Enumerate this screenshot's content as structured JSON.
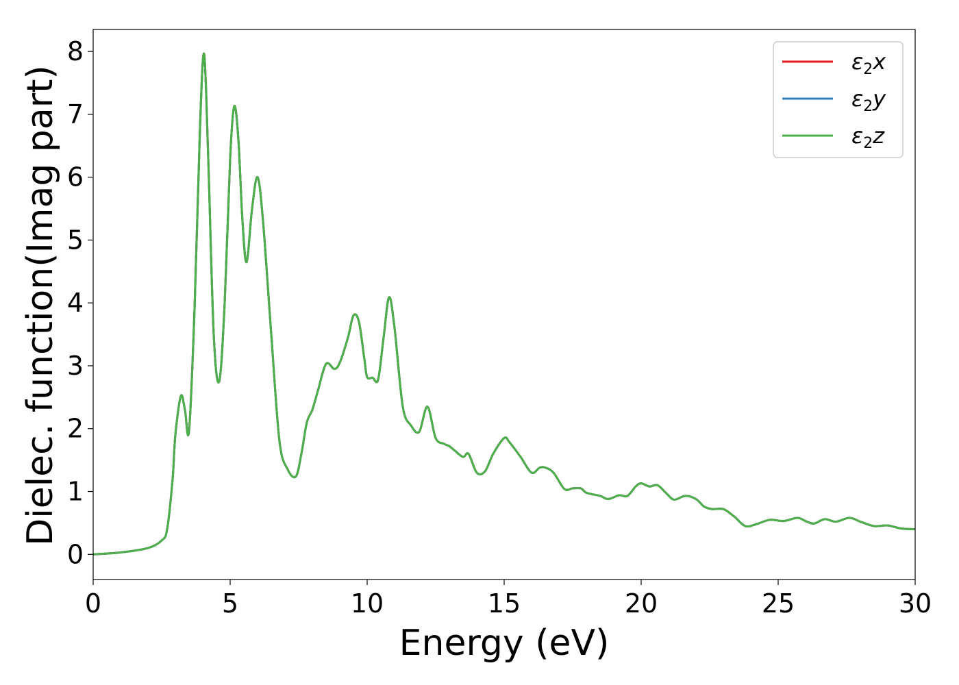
{
  "chart_data": {
    "type": "line",
    "xlabel": "Energy (eV)",
    "ylabel": "Dielec. function(Imag part)",
    "xlim": [
      0,
      30
    ],
    "ylim": [
      -0.4,
      8.35
    ],
    "xticks": [
      0,
      5,
      10,
      15,
      20,
      25,
      30
    ],
    "xtick_labels": [
      "0",
      "5",
      "10",
      "15",
      "20",
      "25",
      "30"
    ],
    "yticks": [
      0,
      1,
      2,
      3,
      4,
      5,
      6,
      7,
      8
    ],
    "ytick_labels": [
      "0",
      "1",
      "2",
      "3",
      "4",
      "5",
      "6",
      "7",
      "8"
    ],
    "grid": false,
    "legend_position": "top-right",
    "series": [
      {
        "name": "ε2x",
        "symbol": "ε",
        "subscript": "2",
        "axis": "x",
        "color": "#e41a1c"
      },
      {
        "name": "ε2y",
        "symbol": "ε",
        "subscript": "2",
        "axis": "y",
        "color": "#377eb8"
      },
      {
        "name": "ε2z",
        "symbol": "ε",
        "subscript": "2",
        "axis": "z",
        "color": "#4daf4a"
      }
    ],
    "x": [
      0,
      1,
      2,
      2.5,
      2.7,
      2.9,
      3.0,
      3.2,
      3.35,
      3.5,
      3.7,
      3.9,
      4.05,
      4.2,
      4.4,
      4.6,
      4.8,
      5.0,
      5.15,
      5.3,
      5.45,
      5.6,
      5.8,
      6.0,
      6.2,
      6.5,
      6.8,
      7.1,
      7.4,
      7.6,
      7.8,
      8.0,
      8.2,
      8.5,
      8.8,
      9.0,
      9.3,
      9.5,
      9.7,
      9.9,
      10.0,
      10.2,
      10.4,
      10.6,
      10.8,
      11.0,
      11.3,
      11.6,
      11.9,
      12.2,
      12.5,
      12.8,
      13.0,
      13.2,
      13.5,
      13.7,
      14.0,
      14.3,
      14.6,
      15.0,
      15.2,
      15.6,
      16.0,
      16.3,
      16.5,
      16.8,
      17.2,
      17.5,
      17.8,
      18.0,
      18.5,
      18.8,
      19.2,
      19.5,
      19.8,
      20.0,
      20.3,
      20.6,
      20.9,
      21.2,
      21.6,
      22.0,
      22.3,
      22.6,
      23.0,
      23.4,
      23.8,
      24.2,
      24.7,
      25.2,
      25.7,
      26.0,
      26.3,
      26.7,
      27.1,
      27.6,
      28.0,
      28.5,
      29.0,
      29.5,
      30.0
    ],
    "values": [
      0.0,
      0.03,
      0.1,
      0.22,
      0.4,
      1.2,
      1.9,
      2.52,
      2.3,
      1.97,
      3.9,
      6.8,
      7.96,
      6.3,
      3.5,
      2.75,
      4.0,
      6.3,
      7.13,
      6.6,
      5.3,
      4.65,
      5.5,
      6.0,
      5.3,
      3.5,
      1.8,
      1.35,
      1.24,
      1.6,
      2.1,
      2.3,
      2.6,
      3.03,
      2.95,
      3.05,
      3.45,
      3.8,
      3.7,
      3.1,
      2.82,
      2.81,
      2.78,
      3.45,
      4.09,
      3.6,
      2.35,
      2.05,
      1.95,
      2.35,
      1.85,
      1.76,
      1.72,
      1.65,
      1.55,
      1.6,
      1.3,
      1.32,
      1.6,
      1.85,
      1.78,
      1.55,
      1.3,
      1.38,
      1.38,
      1.3,
      1.04,
      1.05,
      1.05,
      0.98,
      0.93,
      0.88,
      0.94,
      0.93,
      1.08,
      1.13,
      1.08,
      1.1,
      0.98,
      0.87,
      0.93,
      0.88,
      0.76,
      0.72,
      0.72,
      0.6,
      0.45,
      0.48,
      0.55,
      0.53,
      0.58,
      0.53,
      0.49,
      0.56,
      0.52,
      0.58,
      0.52,
      0.45,
      0.46,
      0.41,
      0.4
    ]
  }
}
